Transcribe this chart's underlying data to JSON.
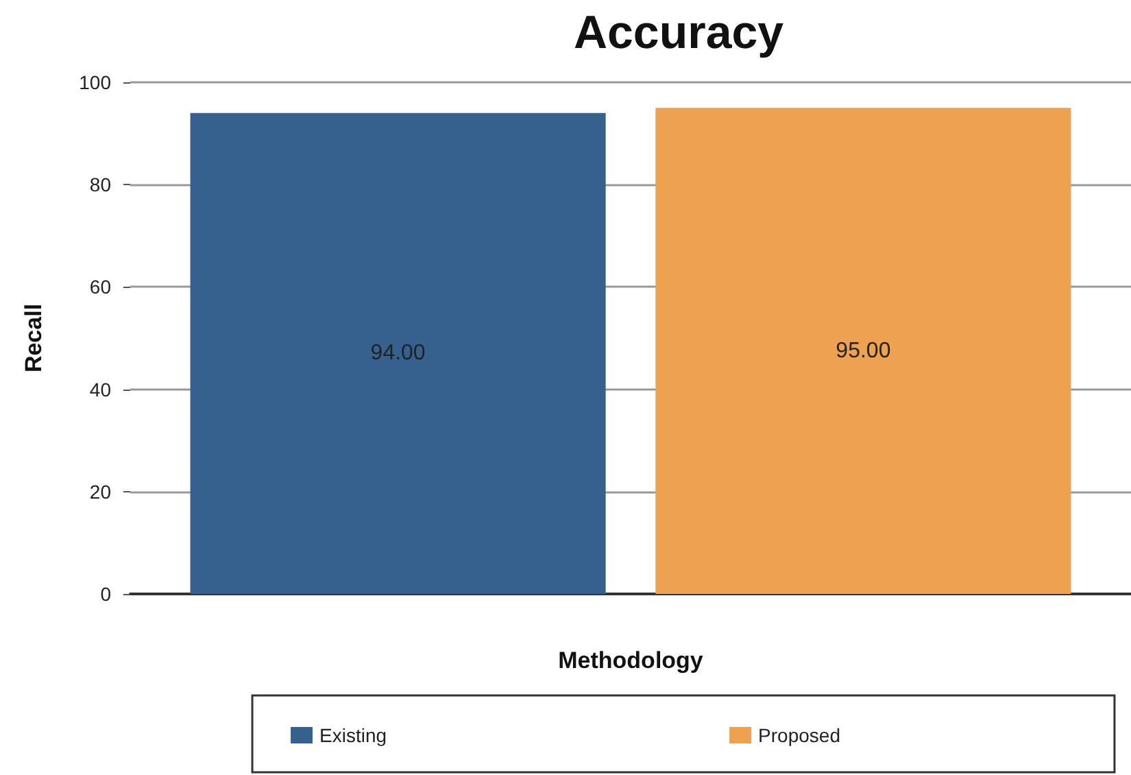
{
  "chart_data": {
    "type": "bar",
    "title": "Accuracy",
    "xlabel": "Methodology",
    "ylabel": "Recall",
    "categories": [
      null
    ],
    "series": [
      {
        "name": "Existing",
        "color": "#36618f",
        "values": [
          94
        ],
        "value_labels": [
          "94.00"
        ]
      },
      {
        "name": "Proposed",
        "color": "#eea150",
        "values": [
          95
        ],
        "value_labels": [
          "95.00"
        ]
      }
    ],
    "ylim": [
      0,
      100
    ],
    "yticks": [
      0,
      20,
      40,
      60,
      80,
      100
    ],
    "grid": "y",
    "legend": "bottom"
  }
}
